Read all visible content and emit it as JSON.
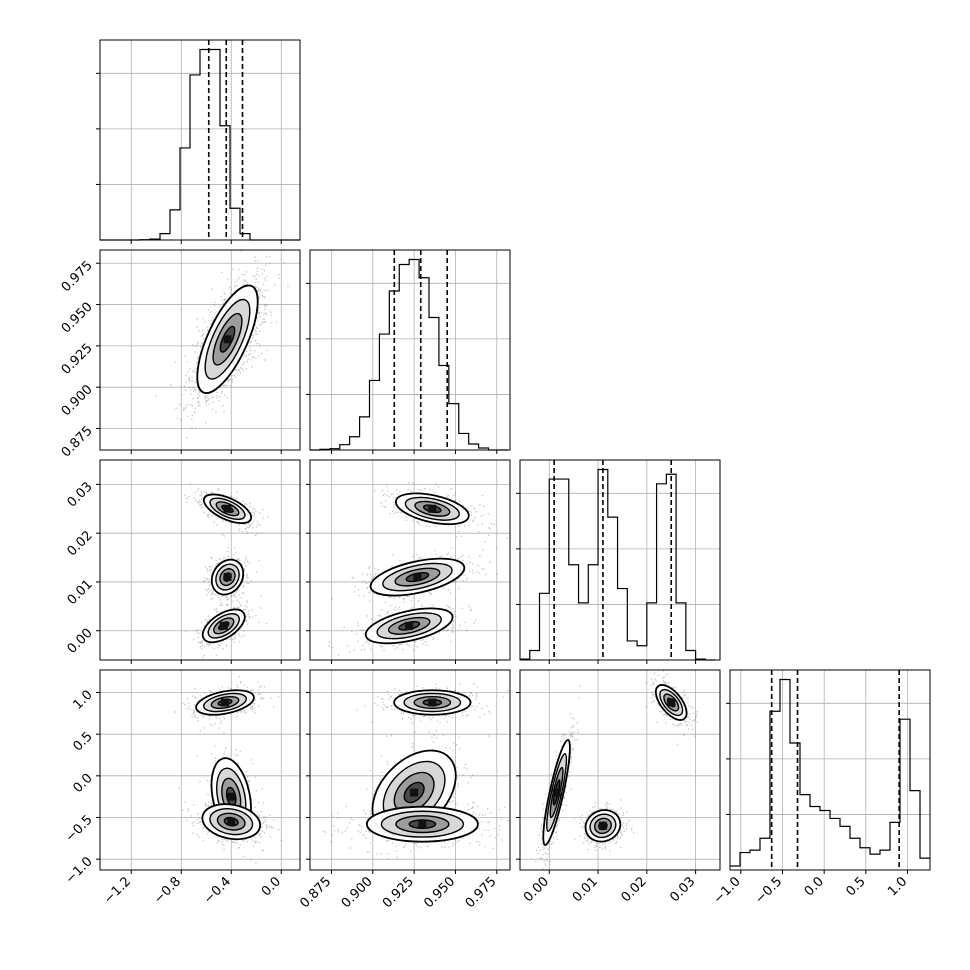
{
  "chart_data": {
    "type": "corner",
    "title": "",
    "grid": true,
    "parameters": [
      {
        "range": [
          -1.45,
          0.15
        ],
        "ticks": [
          -1.2,
          -0.8,
          -0.4,
          0.0
        ],
        "tick_labels": [
          "−1.2",
          "−0.8",
          "−0.4",
          "0.0"
        ],
        "quantiles": [
          -0.58,
          -0.44,
          -0.31
        ],
        "histogram": {
          "edges": [
            -1.45,
            -1.37,
            -1.29,
            -1.21,
            -1.13,
            -1.05,
            -0.97,
            -0.89,
            -0.81,
            -0.73,
            -0.65,
            -0.57,
            -0.49,
            -0.41,
            -0.33,
            -0.25,
            -0.17,
            -0.09,
            -0.01,
            0.07,
            0.15
          ],
          "counts": [
            0,
            0,
            0,
            0,
            1,
            3,
            20,
            95,
            290,
            520,
            600,
            600,
            360,
            100,
            20,
            0,
            0,
            0,
            0,
            0
          ]
        }
      },
      {
        "range": [
          0.862,
          0.983
        ],
        "ticks": [
          0.875,
          0.9,
          0.925,
          0.95,
          0.975
        ],
        "tick_labels": [
          "0.875",
          "0.900",
          "0.925",
          "0.950",
          "0.975"
        ],
        "quantiles": [
          0.913,
          0.929,
          0.945
        ],
        "histogram": {
          "edges": [
            0.862,
            0.868,
            0.874,
            0.88,
            0.886,
            0.892,
            0.898,
            0.904,
            0.91,
            0.916,
            0.922,
            0.928,
            0.934,
            0.94,
            0.946,
            0.952,
            0.958,
            0.964,
            0.97,
            0.976,
            0.982
          ],
          "counts": [
            0,
            2,
            4,
            16,
            40,
            100,
            210,
            350,
            480,
            560,
            575,
            520,
            400,
            255,
            140,
            50,
            18,
            6,
            0,
            0
          ]
        }
      },
      {
        "range": [
          -0.006,
          0.035
        ],
        "ticks": [
          0.0,
          0.01,
          0.02,
          0.03
        ],
        "tick_labels": [
          "0.00",
          "0.01",
          "0.02",
          "0.03"
        ],
        "quantiles": [
          0.001,
          0.011,
          0.025
        ],
        "histogram": {
          "edges": [
            -0.006,
            -0.004,
            -0.002,
            0.0,
            0.002,
            0.004,
            0.006,
            0.008,
            0.01,
            0.012,
            0.014,
            0.016,
            0.018,
            0.02,
            0.022,
            0.024,
            0.026,
            0.028,
            0.03,
            0.032,
            0.034
          ],
          "counts": [
            2,
            20,
            140,
            380,
            380,
            200,
            120,
            200,
            400,
            300,
            150,
            40,
            30,
            120,
            370,
            390,
            120,
            20,
            2,
            0
          ]
        }
      },
      {
        "range": [
          -1.13,
          1.27
        ],
        "ticks": [
          -1.0,
          -0.5,
          0.0,
          0.5,
          1.0
        ],
        "tick_labels": [
          "−1.0",
          "−0.5",
          "0.0",
          "0.5",
          "1.0"
        ],
        "quantiles": [
          -0.63,
          -0.32,
          0.9
        ],
        "histogram": {
          "edges": [
            -1.13,
            -1.01,
            -0.89,
            -0.77,
            -0.65,
            -0.53,
            -0.41,
            -0.29,
            -0.17,
            -0.05,
            0.07,
            0.19,
            0.31,
            0.43,
            0.55,
            0.67,
            0.79,
            0.91,
            1.03,
            1.15,
            1.27
          ],
          "counts": [
            5,
            22,
            25,
            40,
            200,
            240,
            160,
            95,
            80,
            75,
            65,
            55,
            40,
            28,
            20,
            25,
            60,
            190,
            100,
            15
          ]
        }
      }
    ],
    "pairs": [
      {
        "row": 1,
        "col": 0,
        "clusters": [
          {
            "center": [
              -0.43,
              0.929
            ],
            "sigma": [
              0.115,
              0.0155
            ],
            "corr": 0.7,
            "weight": 1.0
          }
        ]
      },
      {
        "row": 2,
        "col": 0,
        "clusters": [
          {
            "center": [
              -0.43,
              0.025
            ],
            "sigma": [
              0.09,
              0.0014
            ],
            "corr": -0.6,
            "weight": 0.33
          },
          {
            "center": [
              -0.43,
              0.011
            ],
            "sigma": [
              0.06,
              0.0017
            ],
            "corr": 0.2,
            "weight": 0.33
          },
          {
            "center": [
              -0.46,
              0.001
            ],
            "sigma": [
              0.08,
              0.0016
            ],
            "corr": 0.55,
            "weight": 0.34
          }
        ]
      },
      {
        "row": 2,
        "col": 1,
        "clusters": [
          {
            "center": [
              0.936,
              0.025
            ],
            "sigma": [
              0.0105,
              0.0015
            ],
            "corr": -0.45,
            "weight": 0.33
          },
          {
            "center": [
              0.927,
              0.011
            ],
            "sigma": [
              0.0135,
              0.0018
            ],
            "corr": 0.5,
            "weight": 0.33
          },
          {
            "center": [
              0.922,
              0.001
            ],
            "sigma": [
              0.0125,
              0.0017
            ],
            "corr": 0.5,
            "weight": 0.34
          }
        ]
      },
      {
        "row": 3,
        "col": 0,
        "clusters": [
          {
            "center": [
              -0.45,
              0.88
            ],
            "sigma": [
              0.11,
              0.07
            ],
            "corr": 0.4,
            "weight": 0.35
          },
          {
            "center": [
              -0.4,
              -0.25
            ],
            "sigma": [
              0.075,
              0.22
            ],
            "corr": -0.3,
            "weight": 0.25
          },
          {
            "center": [
              -0.4,
              -0.55
            ],
            "sigma": [
              0.11,
              0.1
            ],
            "corr": -0.2,
            "weight": 0.4
          }
        ]
      },
      {
        "row": 3,
        "col": 1,
        "clusters": [
          {
            "center": [
              0.936,
              0.88
            ],
            "sigma": [
              0.011,
              0.07
            ],
            "corr": 0.0,
            "weight": 0.35
          },
          {
            "center": [
              0.925,
              -0.2
            ],
            "sigma": [
              0.012,
              0.24
            ],
            "corr": 0.4,
            "weight": 0.25
          },
          {
            "center": [
              0.93,
              -0.58
            ],
            "sigma": [
              0.016,
              0.1
            ],
            "corr": 0.0,
            "weight": 0.4
          }
        ]
      },
      {
        "row": 3,
        "col": 2,
        "clusters": [
          {
            "center": [
              0.025,
              0.88
            ],
            "sigma": [
              0.0015,
              0.1
            ],
            "corr": -0.6,
            "weight": 0.33
          },
          {
            "center": [
              0.011,
              -0.6
            ],
            "sigma": [
              0.0017,
              0.09
            ],
            "corr": 0.1,
            "weight": 0.33
          },
          {
            "center": [
              0.0015,
              -0.2
            ],
            "sigma": [
              0.0013,
              0.3
            ],
            "corr": 0.85,
            "weight": 0.34
          }
        ]
      }
    ]
  }
}
